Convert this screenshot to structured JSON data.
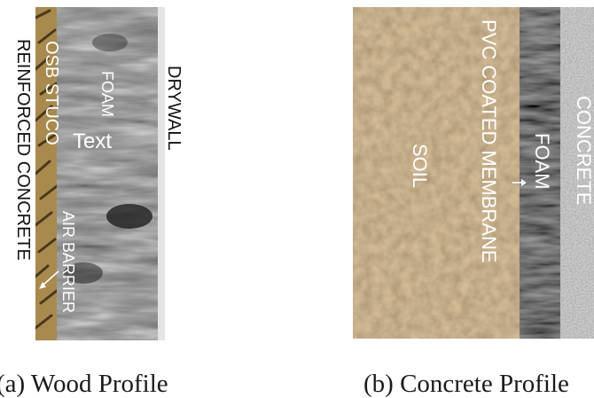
{
  "wood_profile": {
    "caption": "(a)  Wood Profile",
    "layers": {
      "reinforced_concrete": "REINFORCED CONCRETE",
      "osb_stuco": "OSB STUCO",
      "foam": "FOAM",
      "foam_text": "Text",
      "air_barrier": "AIR BARRIER",
      "drywall": "DRYWALL"
    }
  },
  "concrete_profile": {
    "caption": "(b)  Concrete Profile",
    "layers": {
      "soil": "SOIL",
      "pvc_membrane": "PVC COATED MEMBRANE",
      "foam": "FOAM",
      "concrete": "CONCRETE"
    }
  },
  "colors": {
    "osb": "#a88a4e",
    "foam_gray": "#8a8a8a",
    "soil": "#8a6a45",
    "concrete": "#8e8e8e",
    "drywall": "#e4e4e4"
  }
}
